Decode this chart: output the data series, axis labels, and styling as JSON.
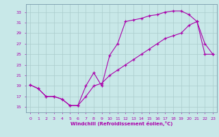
{
  "xlabel": "Windchill (Refroidissement éolien,°C)",
  "line_color": "#aa00aa",
  "bg_color": "#c8e8e8",
  "grid_color": "#aacccc",
  "xlim_min": -0.5,
  "xlim_max": 23.5,
  "ylim_min": 14.0,
  "ylim_max": 34.5,
  "yticks": [
    15,
    17,
    19,
    21,
    23,
    25,
    27,
    29,
    31,
    33
  ],
  "xticks": [
    0,
    1,
    2,
    3,
    4,
    5,
    6,
    7,
    8,
    9,
    10,
    11,
    12,
    13,
    14,
    15,
    16,
    17,
    18,
    19,
    20,
    21,
    22,
    23
  ],
  "series1_x": [
    0,
    1,
    2,
    3,
    4,
    5,
    6,
    7,
    8,
    9,
    10,
    11,
    12,
    13,
    14,
    15,
    16,
    17,
    18,
    19,
    20,
    21,
    22,
    23
  ],
  "series1_y": [
    19.2,
    18.5,
    17.0,
    17.0,
    16.5,
    15.3,
    15.3,
    19.0,
    21.5,
    19.0,
    24.8,
    27.0,
    31.2,
    31.5,
    31.8,
    32.3,
    32.5,
    33.0,
    33.2,
    33.2,
    32.5,
    31.2,
    27.0,
    25.0
  ],
  "series2_x": [
    0,
    1,
    2,
    3,
    4,
    5,
    6,
    7,
    8,
    9,
    10,
    11,
    12,
    13,
    14,
    15,
    16,
    17,
    18,
    19,
    20,
    21,
    22,
    23
  ],
  "series2_y": [
    19.2,
    18.5,
    17.0,
    17.0,
    16.5,
    15.3,
    15.3,
    17.0,
    19.0,
    19.5,
    21.0,
    22.0,
    23.0,
    24.0,
    25.0,
    26.0,
    27.0,
    28.0,
    28.5,
    29.0,
    30.5,
    31.2,
    25.0,
    25.0
  ]
}
